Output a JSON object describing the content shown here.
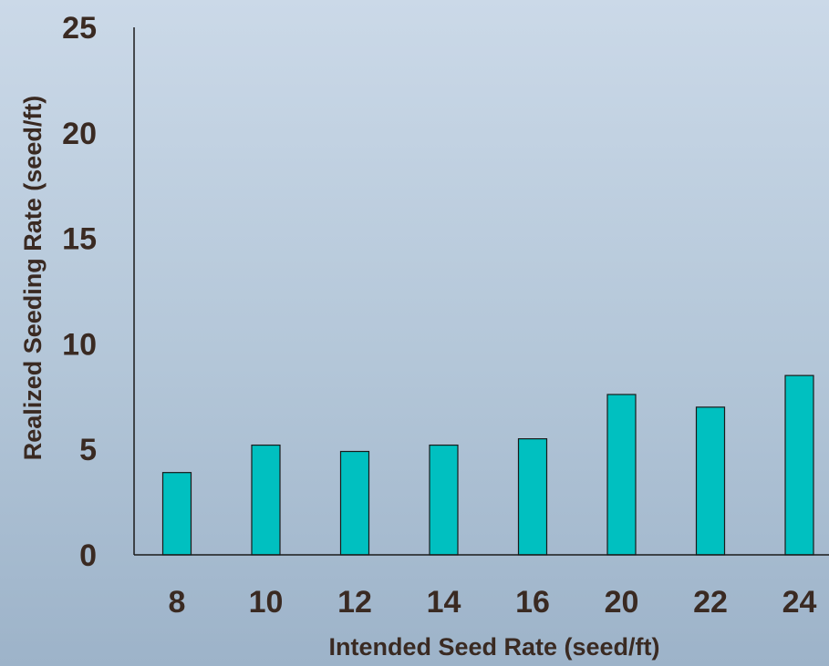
{
  "chart_data": {
    "type": "bar",
    "xlabel": "Intended Seed Rate (seed/ft)",
    "ylabel": "Realized Seeding Rate (seed/ft)",
    "categories": [
      "8",
      "10",
      "12",
      "14",
      "16",
      "20",
      "22",
      "24"
    ],
    "values": [
      3.9,
      5.2,
      4.9,
      5.2,
      5.5,
      7.6,
      7.0,
      8.5
    ],
    "ylim": [
      0,
      25
    ],
    "yticks": [
      0,
      5,
      10,
      15,
      20,
      25
    ],
    "grid": false,
    "legend": "none",
    "colors": {
      "bar_fill": "#00c0c0",
      "bar_stroke": "#1a1a1a",
      "axis": "#1a1a1a",
      "text": "#3a2a22"
    }
  }
}
